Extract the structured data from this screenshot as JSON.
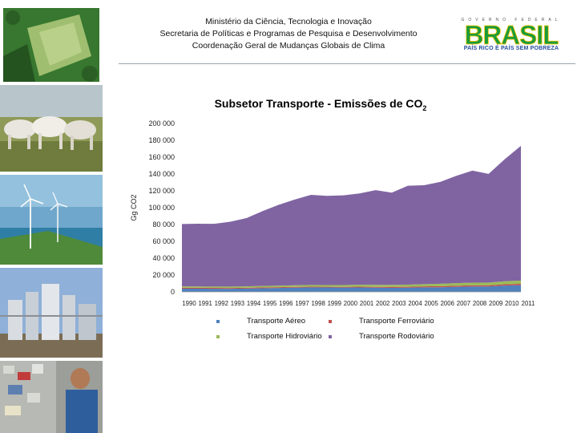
{
  "header": {
    "line1": "Ministério da Ciência, Tecnologia e Inovação",
    "line2": "Secretaria de Políticas e Programas de Pesquisa e Desenvolvimento",
    "line3": "Coordenação Geral de Mudanças Globais de Clima"
  },
  "logo": {
    "top_text": "GOVERNO FEDERAL",
    "word": "BRASIL",
    "tagline": "PAÍS RICO É PAÍS SEM POBREZA",
    "colors": [
      "#f6c600",
      "#1a9b3a",
      "#1f5bb5"
    ]
  },
  "photos": [
    "aerial-deforestation",
    "cattle",
    "wind-turbines",
    "industrial-plant",
    "recycling-worker"
  ],
  "chart_data": {
    "type": "area",
    "stacked": true,
    "title": "Subsetor Transporte - Emissões de CO",
    "title_sub": "2",
    "ylabel": "Gg CO2",
    "ylim": [
      0,
      200000
    ],
    "yticks": [
      0,
      20000,
      40000,
      60000,
      80000,
      100000,
      120000,
      140000,
      160000,
      180000,
      200000
    ],
    "ytick_labels": [
      "0",
      "20 000",
      "40 000",
      "60 000",
      "80 000",
      "100 000",
      "120 000",
      "140 000",
      "160 000",
      "180 000",
      "200 000"
    ],
    "x": [
      "1990",
      "1991",
      "1992",
      "1993",
      "1994",
      "1995",
      "1996",
      "1997",
      "1998",
      "1999",
      "2000",
      "2001",
      "2002",
      "2003",
      "2004",
      "2005",
      "2006",
      "2007",
      "2008",
      "2009",
      "2010",
      "2011"
    ],
    "series": [
      {
        "name": "Transporte Aéreo",
        "color": "#4f81bd",
        "values": [
          3800,
          3800,
          3700,
          3700,
          3900,
          4300,
          4700,
          5000,
          5300,
          5200,
          5100,
          5200,
          5000,
          4800,
          5000,
          5300,
          5500,
          6000,
          6400,
          6400,
          7500,
          8000
        ]
      },
      {
        "name": "Transporte Ferroviário",
        "color": "#c0504d",
        "values": [
          1200,
          1100,
          1100,
          1000,
          1000,
          1000,
          900,
          900,
          900,
          900,
          900,
          1000,
          1000,
          1100,
          1100,
          1200,
          1300,
          1300,
          1400,
          1400,
          1500,
          1600
        ]
      },
      {
        "name": "Transporte Hidroviário",
        "color": "#9bbb59",
        "values": [
          1600,
          1500,
          1500,
          1600,
          1700,
          1700,
          1800,
          1900,
          2000,
          2000,
          2100,
          2200,
          2300,
          2400,
          2500,
          2700,
          2800,
          3000,
          3200,
          3300,
          3600,
          3800
        ]
      },
      {
        "name": "Transporte Rodoviário",
        "color": "#8064a2",
        "values": [
          74000,
          74500,
          74500,
          77000,
          81000,
          89000,
          96000,
          102000,
          107000,
          106000,
          106500,
          108500,
          112500,
          109500,
          117500,
          117500,
          121000,
          127500,
          133000,
          129000,
          145000,
          160000
        ]
      }
    ],
    "grid": false,
    "legend": "bottom"
  }
}
